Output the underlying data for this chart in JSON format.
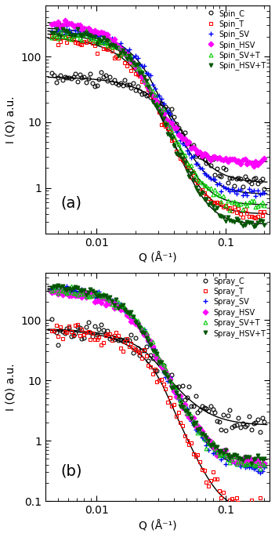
{
  "panel_a": {
    "label": "(a)",
    "ylabel": "I (Q) a.u.",
    "xlabel": "Q (Å⁻¹)",
    "ylim": [
      0.2,
      600
    ],
    "xlim": [
      0.004,
      0.22
    ],
    "series": [
      {
        "name": "Spin_C",
        "marker": "o",
        "color": "black",
        "mfc": "none",
        "ms": 3.5,
        "mew": 0.8
      },
      {
        "name": "Spin_T",
        "marker": "s",
        "color": "red",
        "mfc": "none",
        "ms": 3.5,
        "mew": 0.8
      },
      {
        "name": "Spin_SV",
        "marker": "+",
        "color": "blue",
        "mfc": "blue",
        "ms": 4.5,
        "mew": 1.0
      },
      {
        "name": "Spin_HSV",
        "marker": "D",
        "color": "magenta",
        "mfc": "magenta",
        "ms": 3.5,
        "mew": 0.8
      },
      {
        "name": "Spin_SV+T",
        "marker": "^",
        "color": "#00cc00",
        "mfc": "none",
        "ms": 3.5,
        "mew": 0.8
      },
      {
        "name": "Spin_HSV+T",
        "marker": "v",
        "color": "#005500",
        "mfc": "#005500",
        "ms": 3.5,
        "mew": 0.8
      }
    ]
  },
  "panel_b": {
    "label": "(b)",
    "ylabel": "I (Q) a.u.",
    "xlabel": "Q (Å⁻¹)",
    "ylim": [
      0.1,
      600
    ],
    "xlim": [
      0.004,
      0.22
    ],
    "series": [
      {
        "name": "Spray_C",
        "marker": "o",
        "color": "black",
        "mfc": "none",
        "ms": 3.5,
        "mew": 0.8
      },
      {
        "name": "Spray_T",
        "marker": "s",
        "color": "red",
        "mfc": "none",
        "ms": 3.5,
        "mew": 0.8
      },
      {
        "name": "Spray_SV",
        "marker": "+",
        "color": "blue",
        "mfc": "blue",
        "ms": 4.5,
        "mew": 1.0
      },
      {
        "name": "Spray_HSV",
        "marker": "D",
        "color": "magenta",
        "mfc": "magenta",
        "ms": 3.5,
        "mew": 0.8
      },
      {
        "name": "Spray_SV+T",
        "marker": "^",
        "color": "#00cc00",
        "mfc": "none",
        "ms": 3.5,
        "mew": 0.8
      },
      {
        "name": "Spray_HSV+T",
        "marker": "v",
        "color": "#005500",
        "mfc": "#005500",
        "ms": 3.5,
        "mew": 0.8
      }
    ]
  },
  "fit_color": "black",
  "fit_lw": 1.0,
  "background_color": "white"
}
